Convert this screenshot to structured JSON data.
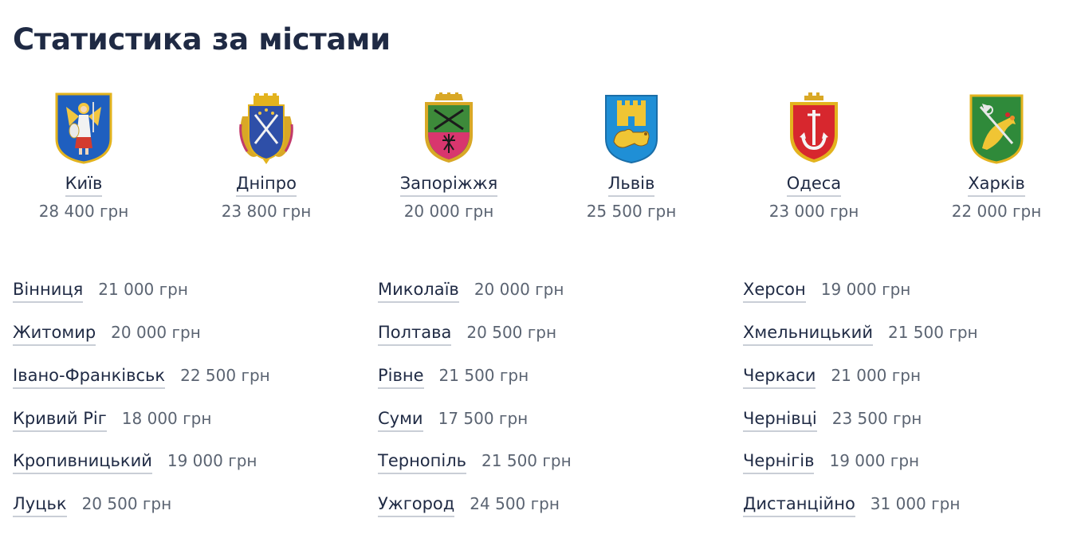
{
  "page": {
    "title": "Статистика за містами"
  },
  "featured": [
    {
      "name": "Київ",
      "salary": "28 400 грн",
      "crest_icon": "kyiv-coat-of-arms-icon"
    },
    {
      "name": "Дніпро",
      "salary": "23 800 грн",
      "crest_icon": "dnipro-coat-of-arms-icon"
    },
    {
      "name": "Запоріжжя",
      "salary": "20 000 грн",
      "crest_icon": "zaporizhzhia-coat-of-arms-icon"
    },
    {
      "name": "Львів",
      "salary": "25 500 грн",
      "crest_icon": "lviv-coat-of-arms-icon"
    },
    {
      "name": "Одеса",
      "salary": "23 000 грн",
      "crest_icon": "odesa-coat-of-arms-icon"
    },
    {
      "name": "Харків",
      "salary": "22 000 грн",
      "crest_icon": "kharkiv-coat-of-arms-icon"
    }
  ],
  "columns": [
    [
      {
        "name": "Вінниця",
        "salary": "21 000 грн"
      },
      {
        "name": "Житомир",
        "salary": "20 000 грн"
      },
      {
        "name": "Івано-Франківськ",
        "salary": "22 500 грн"
      },
      {
        "name": "Кривий Ріг",
        "salary": "18 000 грн"
      },
      {
        "name": "Кропивницький",
        "salary": "19 000 грн"
      },
      {
        "name": "Луцьк",
        "salary": "20 500 грн"
      }
    ],
    [
      {
        "name": "Миколаїв",
        "salary": "20 000 грн"
      },
      {
        "name": "Полтава",
        "salary": "20 500 грн"
      },
      {
        "name": "Рівне",
        "salary": "21 500 грн"
      },
      {
        "name": "Суми",
        "salary": "17 500 грн"
      },
      {
        "name": "Тернопіль",
        "salary": "21 500 грн"
      },
      {
        "name": "Ужгород",
        "salary": "24 500 грн"
      }
    ],
    [
      {
        "name": "Херсон",
        "salary": "19 000 грн"
      },
      {
        "name": "Хмельницький",
        "salary": "21 500 грн"
      },
      {
        "name": "Черкаси",
        "salary": "21 000 грн"
      },
      {
        "name": "Чернівці",
        "salary": "23 500 грн"
      },
      {
        "name": "Чернігів",
        "salary": "19 000 грн"
      },
      {
        "name": "Дистанційно",
        "salary": "31 000 грн"
      }
    ]
  ],
  "colors": {
    "text": "#1f2a44",
    "muted": "#5b6472",
    "underline": "#c9ced6"
  }
}
